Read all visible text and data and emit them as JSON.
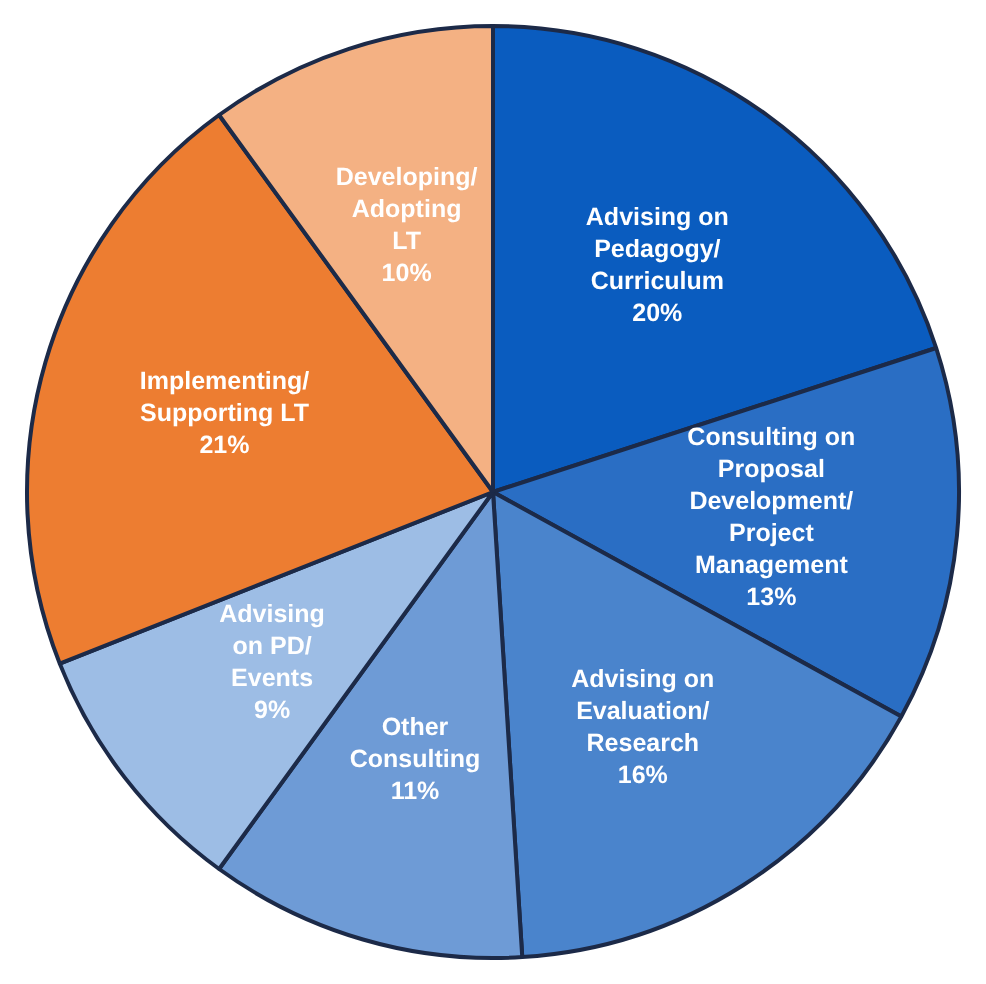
{
  "chart_data": {
    "type": "pie",
    "categories": [
      "Advising on Pedagogy/Curriculum",
      "Consulting on Proposal Development/Project Management",
      "Advising on Evaluation/Research",
      "Other Consulting",
      "Advising on PD/Events",
      "Implementing/ Supporting LT",
      "Developing/ Adopting LT"
    ],
    "values": [
      20,
      13,
      16,
      11,
      9,
      21,
      10
    ],
    "value_labels": [
      "20%",
      "13%",
      "16%",
      "11%",
      "9%",
      "21%",
      "10%"
    ],
    "colors": [
      "#0a5cbf",
      "#2a6ec4",
      "#4a84cc",
      "#6e9bd6",
      "#9dbde5",
      "#ed7d31",
      "#f4b183"
    ],
    "legend": false
  }
}
